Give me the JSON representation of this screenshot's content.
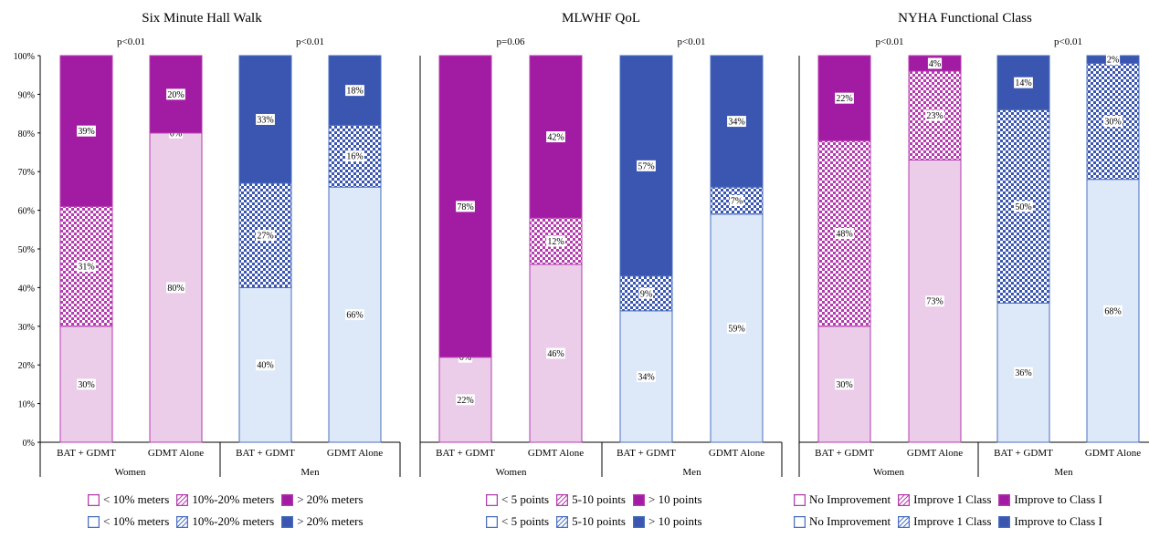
{
  "colors": {
    "women_light": "#ebcce9",
    "women_border": "#b43caf",
    "women_solid": "#a21ca3",
    "men_light": "#dde9f8",
    "men_border": "#4a6fc0",
    "men_solid": "#3a56b0"
  },
  "chart_data": [
    {
      "type": "bar",
      "stacked": true,
      "title": "Six Minute Hall Walk",
      "ylim": [
        0,
        100
      ],
      "yticks": [
        "0%",
        "10%",
        "20%",
        "30%",
        "40%",
        "50%",
        "60%",
        "70%",
        "80%",
        "90%",
        "100%"
      ],
      "groups": [
        {
          "label": "Women",
          "pvalue": "p<0.01",
          "palette": "women",
          "bars": [
            {
              "label": "BAT + GDMT",
              "values": [
                30,
                31,
                39
              ],
              "labels": [
                "30%",
                "31%",
                "39%"
              ]
            },
            {
              "label": "GDMT Alone",
              "values": [
                80,
                0,
                20
              ],
              "labels": [
                "80%",
                "0%",
                "20%"
              ]
            }
          ]
        },
        {
          "label": "Men",
          "pvalue": "p<0.01",
          "palette": "men",
          "bars": [
            {
              "label": "BAT + GDMT",
              "values": [
                40,
                27,
                33
              ],
              "labels": [
                "40%",
                "27%",
                "33%"
              ]
            },
            {
              "label": "GDMT Alone",
              "values": [
                66,
                16,
                18
              ],
              "labels": [
                "66%",
                "16%",
                "18%"
              ]
            }
          ]
        }
      ],
      "legend": {
        "women": [
          "< 10% meters",
          "10%-20% meters",
          "> 20% meters"
        ],
        "men": [
          "< 10% meters",
          "10%-20% meters",
          "> 20% meters"
        ]
      }
    },
    {
      "type": "bar",
      "stacked": true,
      "title": "MLWHF QoL",
      "ylim": [
        0,
        100
      ],
      "groups": [
        {
          "label": "Women",
          "pvalue": "p=0.06",
          "palette": "women",
          "bars": [
            {
              "label": "BAT + GDMT",
              "values": [
                22,
                0,
                78
              ],
              "labels": [
                "22%",
                "0%",
                "78%"
              ]
            },
            {
              "label": "GDMT Alone",
              "values": [
                46,
                12,
                42
              ],
              "labels": [
                "46%",
                "12%",
                "42%"
              ]
            }
          ]
        },
        {
          "label": "Men",
          "pvalue": "p<0.01",
          "palette": "men",
          "bars": [
            {
              "label": "BAT + GDMT",
              "values": [
                34,
                9,
                57
              ],
              "labels": [
                "34%",
                "9%",
                "57%"
              ]
            },
            {
              "label": "GDMT Alone",
              "values": [
                59,
                7,
                34
              ],
              "labels": [
                "59%",
                "7%",
                "34%"
              ]
            }
          ]
        }
      ],
      "legend": {
        "women": [
          "< 5 points",
          "5-10 points",
          "> 10 points"
        ],
        "men": [
          "< 5 points",
          "5-10 points",
          "> 10 points"
        ]
      }
    },
    {
      "type": "bar",
      "stacked": true,
      "title": "NYHA Functional Class",
      "ylim": [
        0,
        100
      ],
      "groups": [
        {
          "label": "Women",
          "pvalue": "p<0.01",
          "palette": "women",
          "bars": [
            {
              "label": "BAT + GDMT",
              "values": [
                30,
                48,
                22
              ],
              "labels": [
                "30%",
                "48%",
                "22%"
              ]
            },
            {
              "label": "GDMT Alone",
              "values": [
                73,
                23,
                4
              ],
              "labels": [
                "73%",
                "23%",
                "4%"
              ]
            }
          ]
        },
        {
          "label": "Men",
          "pvalue": "p<0.01",
          "palette": "men",
          "bars": [
            {
              "label": "BAT + GDMT",
              "values": [
                36,
                50,
                14
              ],
              "labels": [
                "36%",
                "50%",
                "14%"
              ]
            },
            {
              "label": "GDMT Alone",
              "values": [
                68,
                30,
                2
              ],
              "labels": [
                "68%",
                "30%",
                "2%"
              ]
            }
          ]
        }
      ],
      "legend": {
        "women": [
          "No Improvement",
          "Improve 1 Class",
          "Improve to Class I"
        ],
        "men": [
          "No Improvement",
          "Improve 1 Class",
          "Improve to Class I"
        ]
      }
    }
  ]
}
